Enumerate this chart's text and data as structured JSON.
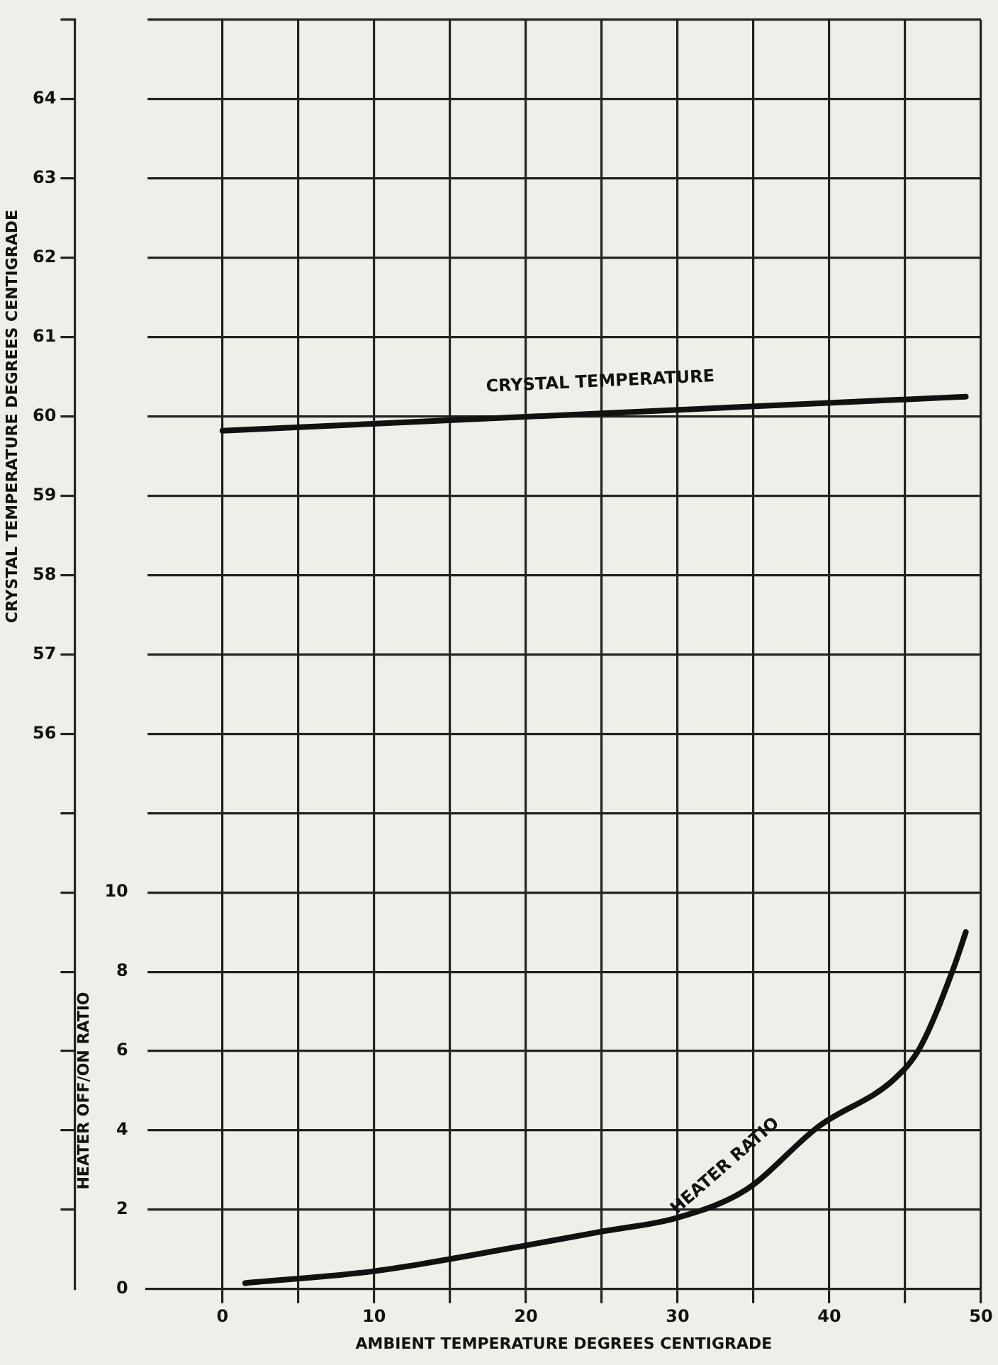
{
  "chart_data": {
    "type": "line",
    "xlabel": "AMBIENT TEMPERATURE DEGREES CENTIGRADE",
    "ylabel": "CRYSTAL TEMPERATURE DEGREES CENTIGRADE",
    "y2label": "HEATER OFF/ON RATIO",
    "xlim": [
      -5,
      50
    ],
    "xticks": [
      0,
      {
        "value": 5,
        "label": null
      },
      10,
      {
        "value": 15,
        "label": null
      },
      20,
      {
        "value": 25,
        "label": null
      },
      30,
      {
        "value": 35,
        "label": null
      },
      40,
      {
        "value": 45,
        "label": null
      },
      50
    ],
    "ylim": [
      49,
      65
    ],
    "yticks": [
      {
        "value": 50,
        "label": null
      },
      {
        "value": 51,
        "label": null
      },
      {
        "value": 52,
        "label": null
      },
      {
        "value": 53,
        "label": null
      },
      {
        "value": 54,
        "label": null
      },
      {
        "value": 55,
        "label": null
      },
      56,
      57,
      58,
      59,
      60,
      61,
      62,
      63,
      64,
      {
        "value": 65,
        "label": null
      }
    ],
    "y2lim": [
      0,
      32
    ],
    "y2ticks": [
      0,
      2,
      4,
      6,
      8,
      10
    ],
    "grid": true,
    "legend": false,
    "marker": "none",
    "line_style": "solid",
    "series": [
      {
        "name": "CRYSTAL TEMPERATURE",
        "color": "#111111",
        "x": [
          0,
          25,
          49
        ],
        "values": [
          59.82,
          60.04,
          60.25
        ]
      },
      {
        "name": "HEATER RATIO",
        "color": "#111111",
        "axis": "y2",
        "x": [
          1.5,
          10,
          20,
          25,
          30,
          34.5,
          39.3,
          44.3,
          46,
          48.2,
          49
        ],
        "values": [
          0.15,
          0.45,
          1.1,
          1.45,
          1.8,
          2.5,
          4.1,
          5.3,
          6.1,
          8.1,
          9.0
        ]
      }
    ]
  }
}
